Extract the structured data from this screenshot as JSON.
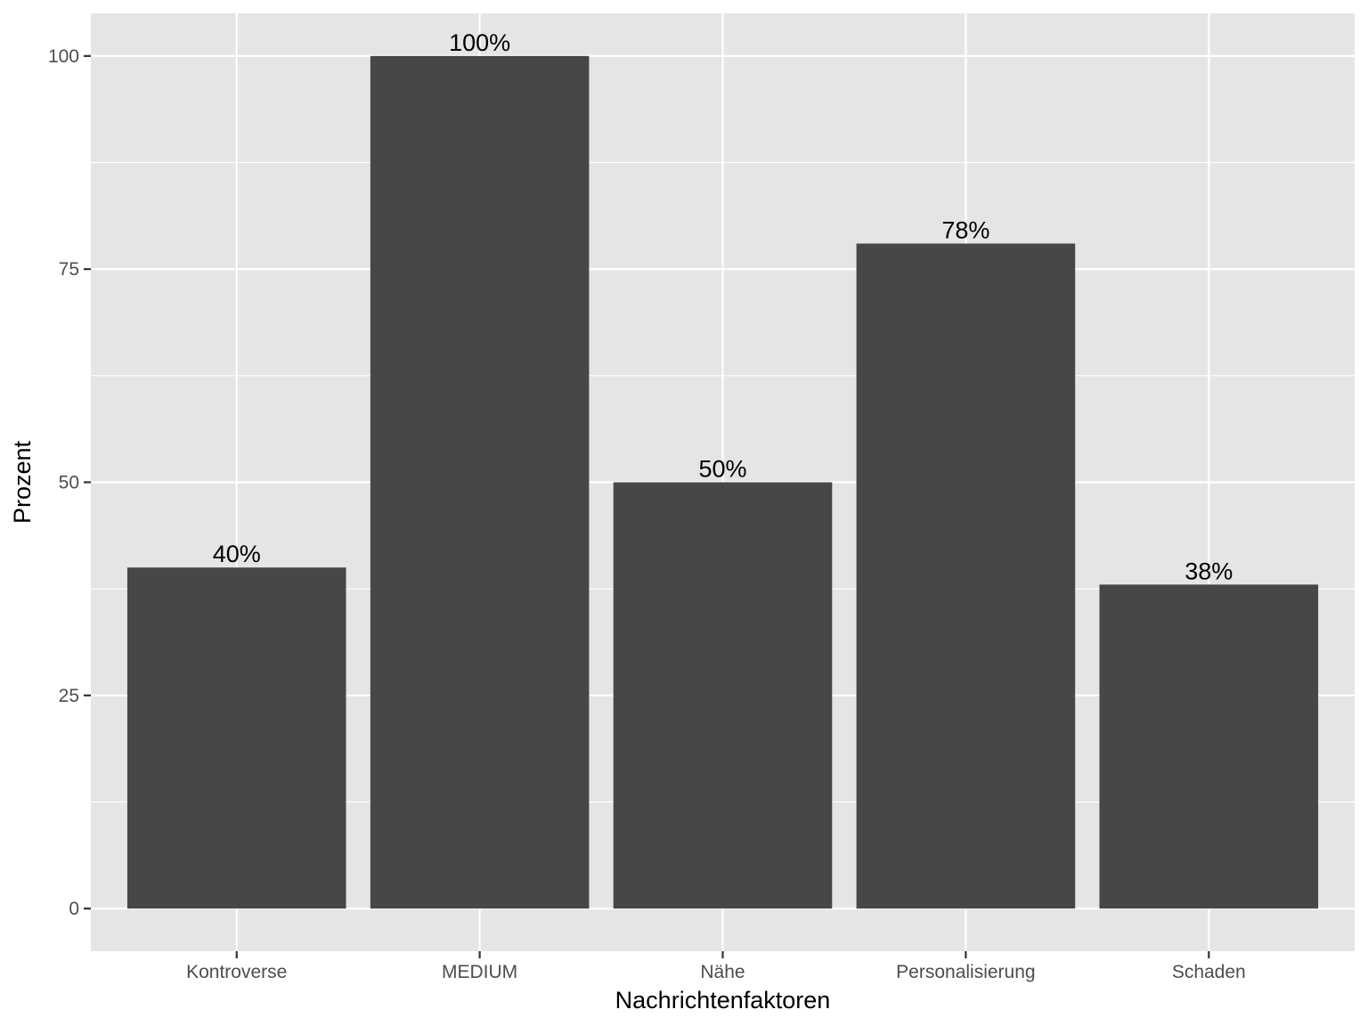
{
  "chart_data": {
    "type": "bar",
    "categories": [
      "Kontroverse",
      "MEDIUM",
      "Nähe",
      "Personalisierung",
      "Schaden"
    ],
    "values": [
      40,
      100,
      50,
      78,
      38
    ],
    "data_labels": [
      "40%",
      "100%",
      "50%",
      "78%",
      "38%"
    ],
    "xlabel": "Nachrichtenfaktoren",
    "ylabel": "Prozent",
    "ylim": [
      -5,
      105
    ],
    "yticks": [
      0,
      25,
      50,
      75,
      100
    ],
    "ytick_labels": [
      "0",
      "25",
      "50",
      "75",
      "100"
    ],
    "grid": true,
    "colors": {
      "panel_background": "#e5e5e5",
      "bar_fill": "#474747",
      "grid": "#ffffff"
    }
  }
}
